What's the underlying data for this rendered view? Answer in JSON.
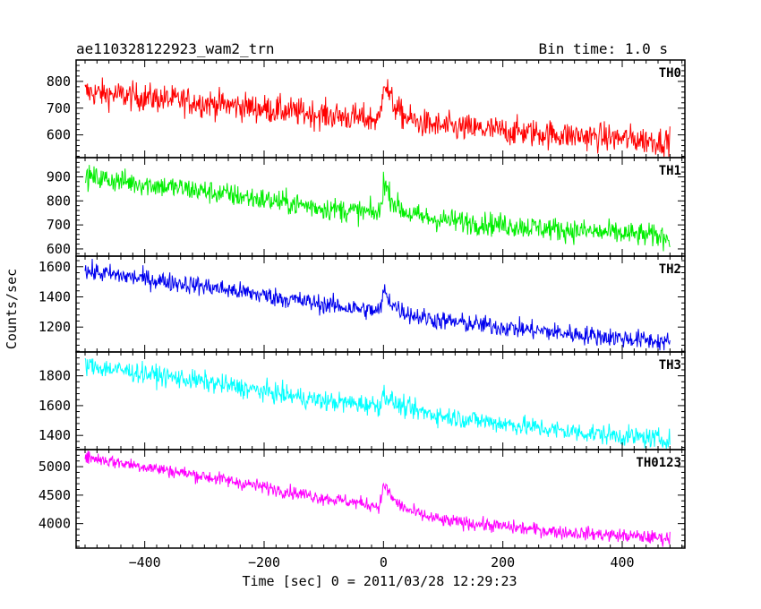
{
  "header": {
    "title_left": "ae110328122923_wam2_trn",
    "title_right": "Bin time: 1.0 s"
  },
  "chart_data": {
    "type": "line",
    "xlabel": "Time [sec] 0 = 2011/03/28 12:29:23",
    "ylabel": "Counts/sec",
    "xlim": [
      -515,
      505
    ],
    "xticks": [
      -400,
      -200,
      0,
      200,
      400
    ],
    "xticklabels": [
      "−400",
      "−200",
      "0",
      "200",
      "400"
    ],
    "x_range_data": [
      -500,
      480
    ],
    "panels": [
      {
        "label": "TH0",
        "color": "#ff0000",
        "ylim": [
          515,
          880
        ],
        "yticks": [
          600,
          700,
          800
        ],
        "trend": [
          [
            -500,
            760
          ],
          [
            -300,
            720
          ],
          [
            -100,
            675
          ],
          [
            0,
            655
          ],
          [
            100,
            630
          ],
          [
            300,
            600
          ],
          [
            480,
            575
          ]
        ],
        "noise": 38,
        "peak": {
          "x": 0,
          "value": 820
        }
      },
      {
        "label": "TH1",
        "color": "#00ee00",
        "ylim": [
          570,
          980
        ],
        "yticks": [
          600,
          700,
          800,
          900
        ],
        "trend": [
          [
            -500,
            900
          ],
          [
            -300,
            840
          ],
          [
            -100,
            770
          ],
          [
            0,
            745
          ],
          [
            100,
            720
          ],
          [
            300,
            680
          ],
          [
            480,
            650
          ]
        ],
        "noise": 35,
        "peak": {
          "x": 0,
          "value": 890
        }
      },
      {
        "label": "TH2",
        "color": "#0000ee",
        "ylim": [
          1035,
          1670
        ],
        "yticks": [
          1200,
          1400,
          1600
        ],
        "trend": [
          [
            -500,
            1570
          ],
          [
            -300,
            1470
          ],
          [
            -100,
            1350
          ],
          [
            0,
            1300
          ],
          [
            100,
            1240
          ],
          [
            300,
            1160
          ],
          [
            480,
            1100
          ]
        ],
        "noise": 45,
        "peak": {
          "x": 0,
          "value": 1450
        }
      },
      {
        "label": "TH3",
        "color": "#00ffff",
        "ylim": [
          1305,
          1960
        ],
        "yticks": [
          1400,
          1600,
          1800
        ],
        "trend": [
          [
            -500,
            1870
          ],
          [
            -300,
            1760
          ],
          [
            -100,
            1630
          ],
          [
            0,
            1600
          ],
          [
            100,
            1530
          ],
          [
            300,
            1430
          ],
          [
            480,
            1370
          ]
        ],
        "noise": 48,
        "peak": {
          "x": 0,
          "value": 1690
        }
      },
      {
        "label": "TH0123",
        "color": "#ff00ff",
        "ylim": [
          3570,
          5300
        ],
        "yticks": [
          4000,
          4500,
          5000
        ],
        "trend": [
          [
            -500,
            5170
          ],
          [
            -300,
            4830
          ],
          [
            -100,
            4450
          ],
          [
            0,
            4300
          ],
          [
            100,
            4050
          ],
          [
            300,
            3850
          ],
          [
            480,
            3740
          ]
        ],
        "noise": 85,
        "peak": {
          "x": 0,
          "value": 4730
        }
      }
    ]
  }
}
